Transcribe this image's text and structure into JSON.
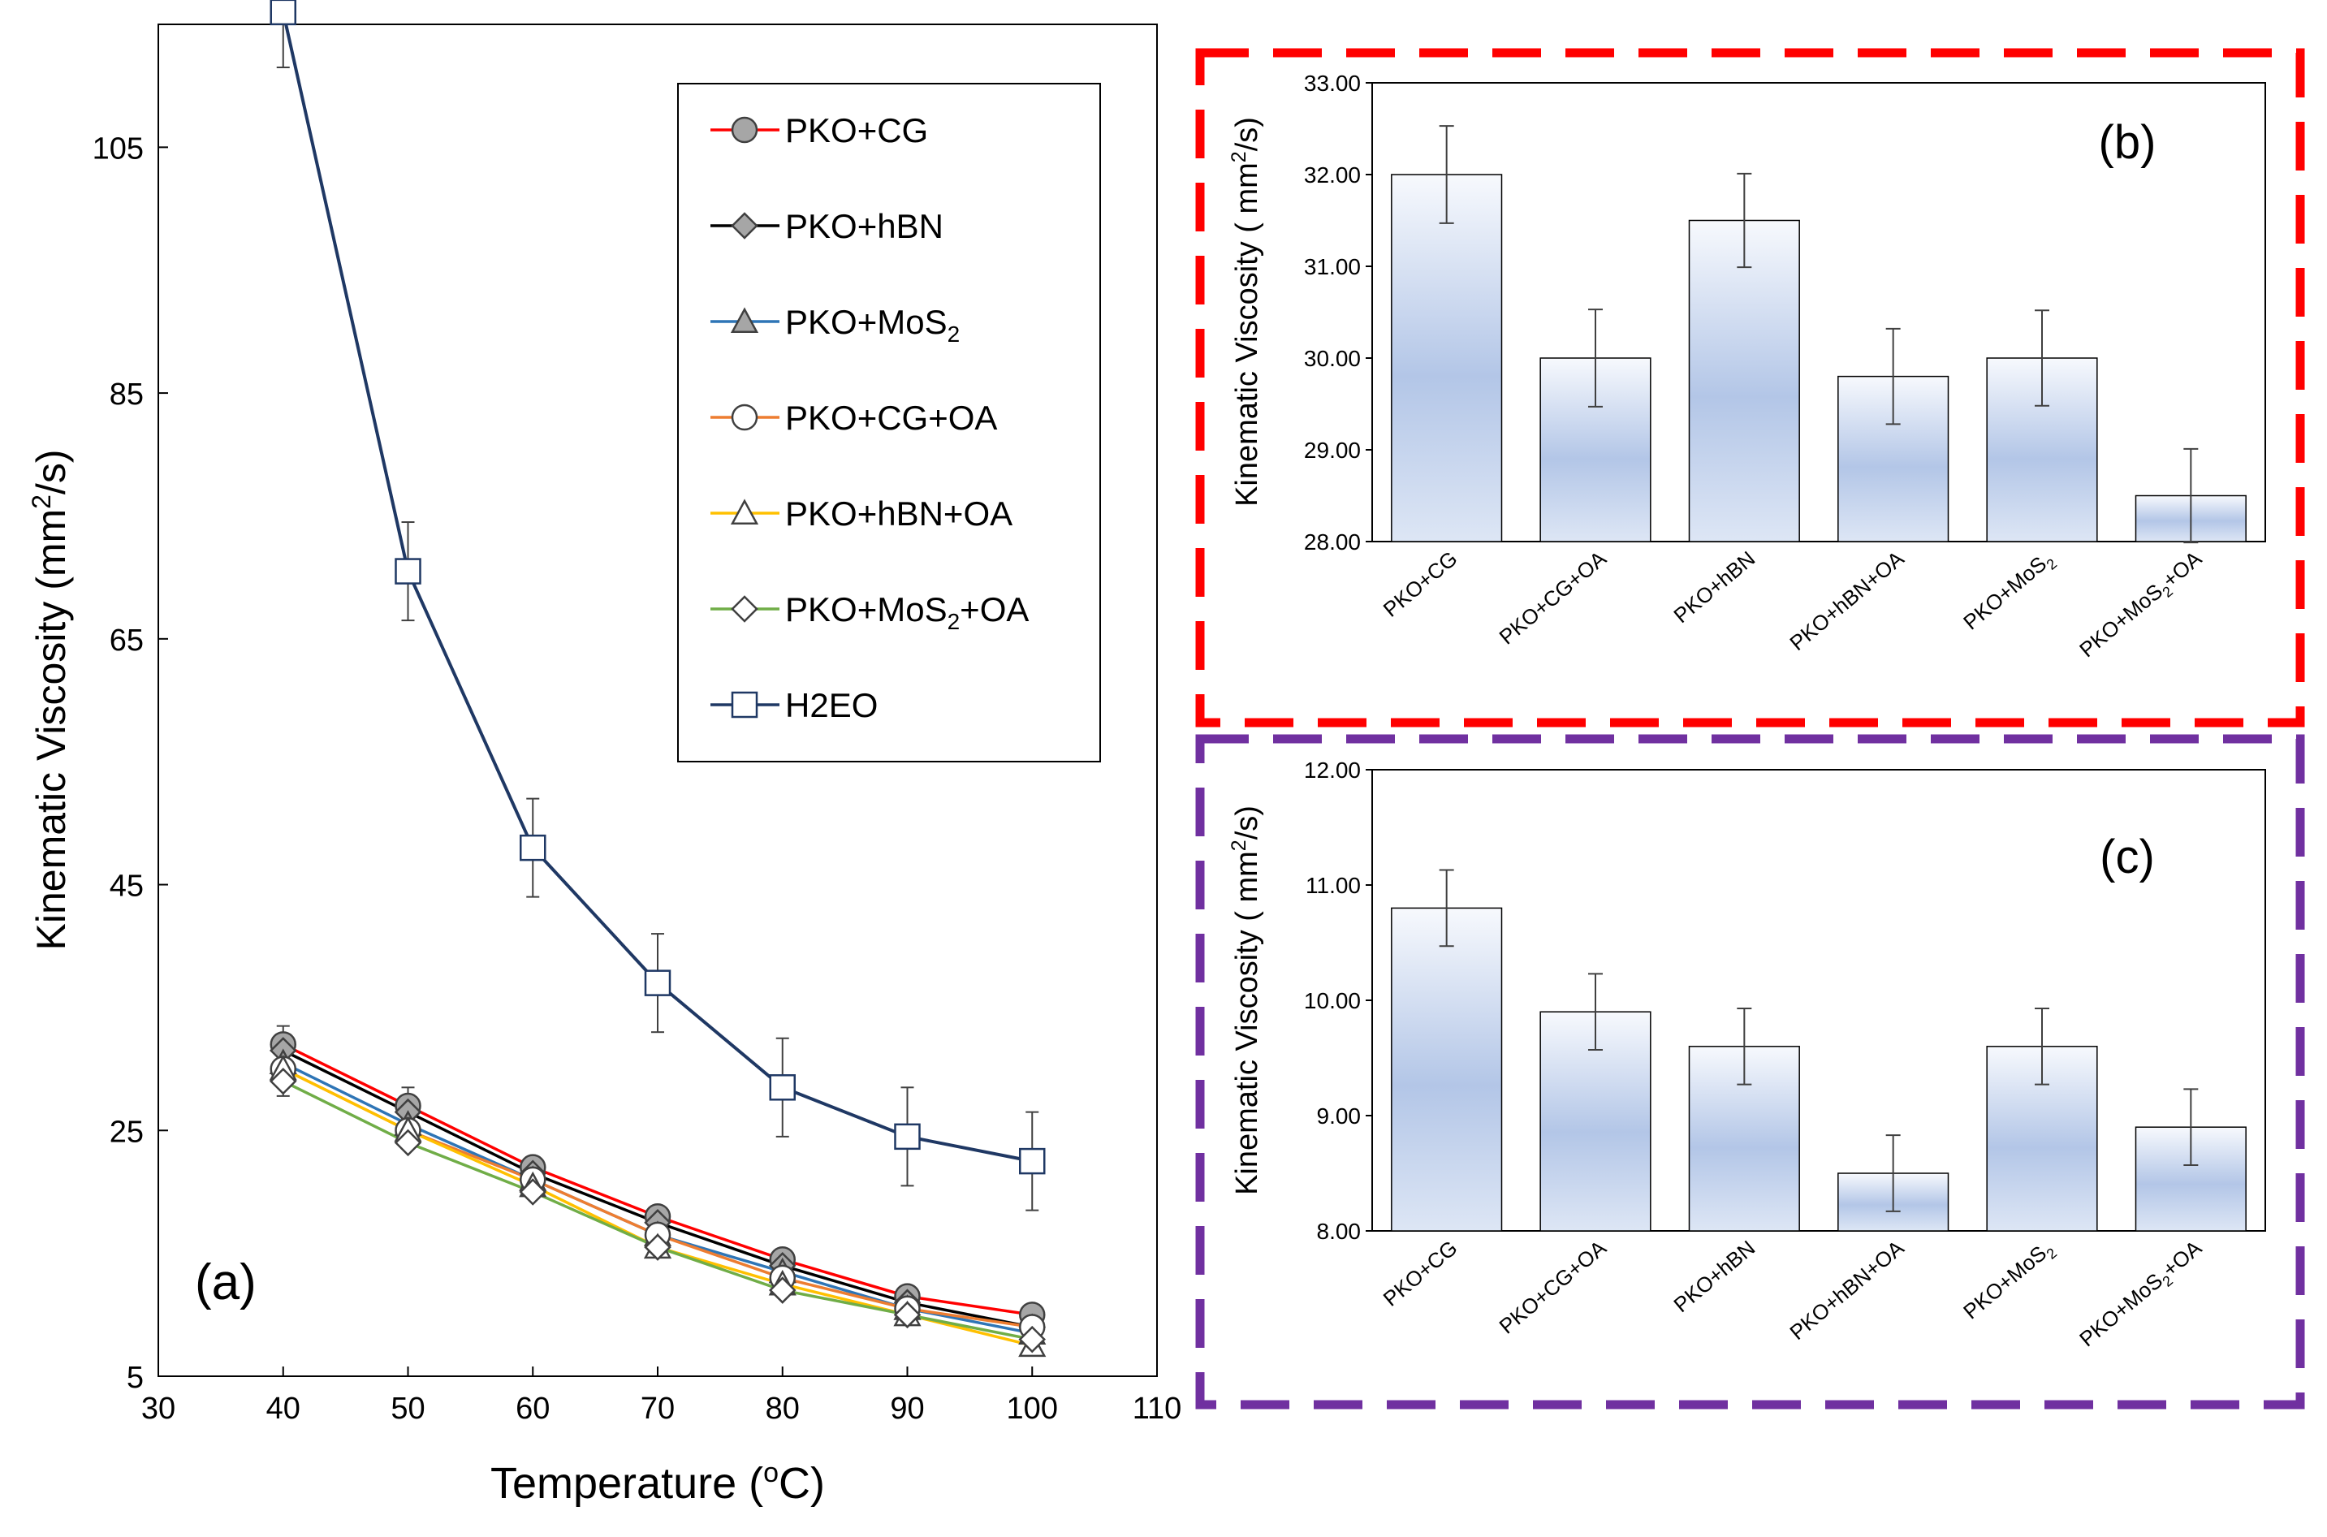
{
  "chart_data": [
    {
      "id": "a",
      "type": "line",
      "panel_label": "(a)",
      "xlabel_main": "Temperature (",
      "xlabel_sup": "o",
      "xlabel_end": "C)",
      "ylabel_main": "Kinematic Viscosity (mm",
      "ylabel_sup": "2",
      "ylabel_end": "/s)",
      "xlim": [
        30,
        110
      ],
      "ylim": [
        5,
        115
      ],
      "xticks": [
        "30",
        "40",
        "50",
        "60",
        "70",
        "80",
        "90",
        "100",
        "110"
      ],
      "yticks": [
        "5",
        "25",
        "45",
        "65",
        "85",
        "105"
      ],
      "x": [
        40,
        50,
        60,
        70,
        80,
        90,
        100
      ],
      "legend_position": "top-right",
      "series": [
        {
          "name": "PKO+CG",
          "label_main": "PKO+CG",
          "label_sub": "",
          "label_end": "",
          "color": "#ff0000",
          "marker": "circle",
          "fill": "#a6a6a6",
          "values": [
            32.0,
            27.0,
            22.0,
            18.0,
            14.5,
            11.5,
            10.0
          ],
          "errors": [
            1.5,
            1.5,
            0,
            0,
            0,
            0,
            0
          ]
        },
        {
          "name": "PKO+hBN",
          "label_main": "PKO+hBN",
          "label_sub": "",
          "label_end": "",
          "color": "#000000",
          "marker": "diamond",
          "fill": "#a6a6a6",
          "values": [
            31.5,
            26.5,
            21.5,
            17.5,
            14.0,
            11.0,
            9.0
          ],
          "errors": [
            0,
            0,
            0,
            0,
            0,
            0,
            0
          ]
        },
        {
          "name": "PKO+MoS2",
          "label_main": "PKO+MoS",
          "label_sub": "2",
          "label_end": "",
          "color": "#2e75b6",
          "marker": "triangle",
          "fill": "#a6a6a6",
          "values": [
            30.5,
            25.5,
            21.0,
            16.5,
            13.5,
            10.5,
            8.5
          ],
          "errors": [
            0,
            0,
            0,
            0,
            0,
            0,
            0
          ]
        },
        {
          "name": "PKO+CG+OA",
          "label_main": "PKO+CG+OA",
          "label_sub": "",
          "label_end": "",
          "color": "#ed7d31",
          "marker": "circle",
          "fill": "#ffffff",
          "values": [
            30.0,
            25.0,
            21.0,
            16.5,
            13.0,
            10.5,
            9.0
          ],
          "errors": [
            0,
            0,
            0,
            0,
            0,
            0,
            0
          ]
        },
        {
          "name": "PKO+hBN+OA",
          "label_main": "PKO+hBN+OA",
          "label_sub": "",
          "label_end": "",
          "color": "#ffc000",
          "marker": "triangle",
          "fill": "#ffffff",
          "values": [
            30.0,
            25.0,
            20.5,
            15.5,
            12.5,
            10.0,
            7.5
          ],
          "errors": [
            0,
            0,
            0,
            0,
            0,
            0,
            0
          ]
        },
        {
          "name": "PKO+MoS2+OA",
          "label_main": "PKO+MoS",
          "label_sub": "2",
          "label_end": "+OA",
          "color": "#70ad47",
          "marker": "diamond",
          "fill": "#ffffff",
          "values": [
            29.0,
            24.0,
            20.0,
            15.5,
            12.0,
            10.0,
            8.0
          ],
          "errors": [
            1.2,
            0,
            0,
            0,
            0,
            0,
            0
          ]
        },
        {
          "name": "H2EO",
          "label_main": "H2EO",
          "label_sub": "",
          "label_end": "",
          "color": "#1f3864",
          "marker": "square",
          "fill": "#ffffff",
          "values": [
            116.0,
            70.5,
            48.0,
            37.0,
            28.5,
            24.5,
            22.5
          ],
          "errors": [
            4.5,
            4.0,
            4.0,
            4.0,
            4.0,
            4.0,
            4.0
          ]
        }
      ]
    },
    {
      "id": "b",
      "type": "bar",
      "panel_label": "(b)",
      "ylabel_main": "Kinematic Viscosity ( mm",
      "ylabel_sup": "2",
      "ylabel_end": "/s)",
      "ylim": [
        28,
        33
      ],
      "yticks": [
        "28.00",
        "29.00",
        "30.00",
        "31.00",
        "32.00",
        "33.00"
      ],
      "categories": [
        {
          "main": "PKO+CG",
          "sub": "",
          "end": ""
        },
        {
          "main": "PKO+CG+OA",
          "sub": "",
          "end": ""
        },
        {
          "main": "PKO+hBN",
          "sub": "",
          "end": ""
        },
        {
          "main": "PKO+hBN+OA",
          "sub": "",
          "end": ""
        },
        {
          "main": "PKO+MoS",
          "sub": "2",
          "end": ""
        },
        {
          "main": "PKO+MoS",
          "sub": "2",
          "end": "+OA"
        }
      ],
      "values": [
        32.0,
        30.0,
        31.5,
        29.8,
        30.0,
        28.5
      ],
      "errors": [
        0.53,
        0.53,
        0.51,
        0.52,
        0.52,
        0.51
      ],
      "frame_color": "#ff0000"
    },
    {
      "id": "c",
      "type": "bar",
      "panel_label": "(c)",
      "ylabel_main": "Kinematic Viscosity ( mm",
      "ylabel_sup": "2",
      "ylabel_end": "/s)",
      "ylim": [
        8,
        12
      ],
      "yticks": [
        "8.00",
        "9.00",
        "10.00",
        "11.00",
        "12.00"
      ],
      "categories": [
        {
          "main": "PKO+CG",
          "sub": "",
          "end": ""
        },
        {
          "main": "PKO+CG+OA",
          "sub": "",
          "end": ""
        },
        {
          "main": "PKO+hBN",
          "sub": "",
          "end": ""
        },
        {
          "main": "PKO+hBN+OA",
          "sub": "",
          "end": ""
        },
        {
          "main": "PKO+MoS",
          "sub": "2",
          "end": ""
        },
        {
          "main": "PKO+MoS",
          "sub": "2",
          "end": "+OA"
        }
      ],
      "values": [
        10.8,
        9.9,
        9.6,
        8.5,
        9.6,
        8.9
      ],
      "errors": [
        0.33,
        0.33,
        0.33,
        0.33,
        0.33,
        0.33
      ],
      "frame_color": "#7030a0"
    }
  ]
}
